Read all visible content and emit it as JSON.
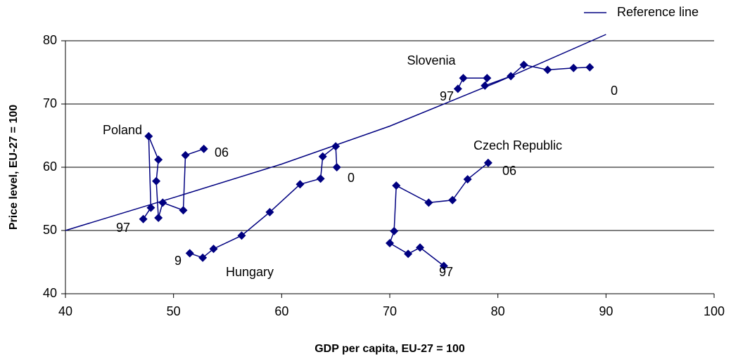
{
  "chart_data": {
    "type": "line",
    "x_label": "GDP per capita, EU-27 = 100",
    "y_label": "Price level, EU-27 = 100",
    "xlim": [
      40,
      100
    ],
    "xticks": [
      40,
      50,
      60,
      70,
      80,
      90,
      100
    ],
    "ylim": [
      40,
      80
    ],
    "yticks": [
      40,
      50,
      60,
      70,
      80
    ],
    "grid": true,
    "legend": "top-right",
    "series": [
      {
        "name": "Poland",
        "color": "#000080",
        "marker": "diamond",
        "x": [
          47.2,
          47.9,
          47.7,
          48.6,
          48.4,
          48.6,
          49.0,
          50.9,
          51.1,
          52.8
        ],
        "values": [
          51.8,
          53.6,
          64.9,
          61.2,
          57.8,
          52.0,
          54.4,
          53.2,
          61.9,
          62.9
        ],
        "annotations": [
          "97",
          "06"
        ]
      },
      {
        "name": "Hungary",
        "color": "#000080",
        "marker": "diamond",
        "x": [
          51.5,
          52.7,
          53.7,
          56.3,
          58.9,
          61.7,
          63.6,
          63.8,
          65.0,
          65.1
        ],
        "values": [
          46.4,
          45.7,
          47.1,
          49.2,
          52.9,
          57.3,
          58.2,
          61.7,
          63.3,
          60.0
        ],
        "annotations": [
          "9",
          "0"
        ]
      },
      {
        "name": "Czech Republic",
        "color": "#000080",
        "marker": "diamond",
        "x": [
          75.0,
          72.8,
          71.7,
          70.0,
          70.4,
          70.6,
          73.6,
          75.8,
          77.2,
          79.1
        ],
        "values": [
          44.4,
          47.3,
          46.3,
          48.0,
          49.9,
          57.1,
          54.4,
          54.8,
          58.1,
          60.7
        ],
        "annotations": [
          "97",
          "06"
        ]
      },
      {
        "name": "Slovenia",
        "color": "#000080",
        "marker": "diamond",
        "x": [
          76.3,
          76.8,
          79.0,
          78.8,
          81.2,
          82.4,
          84.6,
          87.0,
          88.5
        ],
        "values": [
          72.4,
          74.1,
          74.1,
          72.9,
          74.4,
          76.2,
          75.4,
          75.7,
          75.8
        ],
        "annotations": [
          "97",
          "0"
        ]
      },
      {
        "name": "Reference line",
        "color": "#000080",
        "marker": "none",
        "legend": true,
        "x": [
          40,
          50,
          60,
          70,
          80,
          90
        ],
        "values": [
          50,
          55.2,
          60.5,
          66.5,
          73.5,
          81
        ]
      }
    ]
  }
}
